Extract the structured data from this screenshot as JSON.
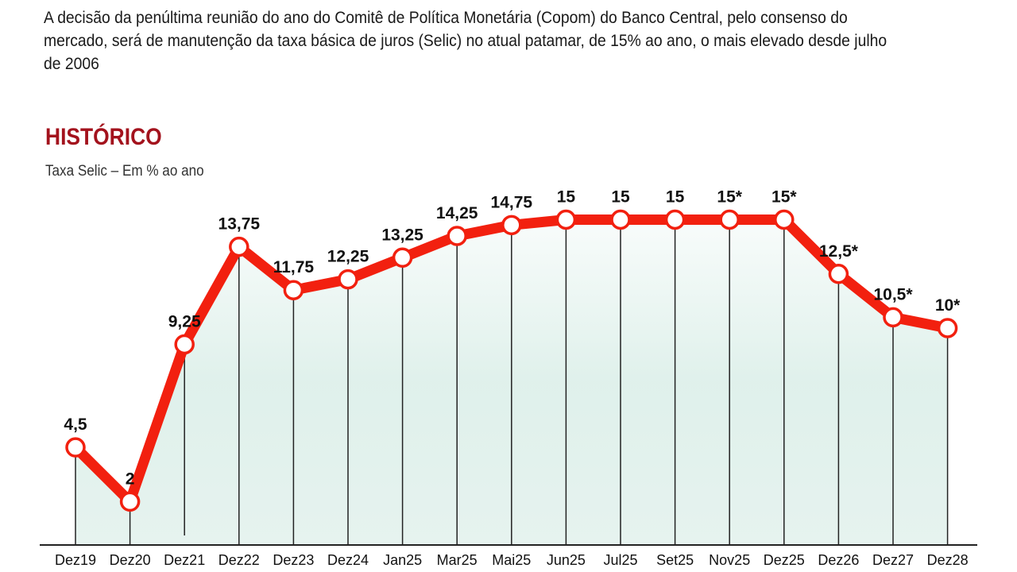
{
  "headline": "A decisão da penúltima reunião do ano do Comitê de Política Monetária (Copom) do Banco Central, pelo consenso do mercado, será de manutenção da taxa básica de juros (Selic) no atual patamar, de 15% ao ano, o mais elevado desde julho de 2006",
  "chart_data": {
    "type": "line",
    "title": "HISTÓRICO",
    "subtitle": "Taxa Selic – Em % ao ano",
    "xlabel": "",
    "ylabel": "",
    "ylim": [
      0,
      15
    ],
    "grid": "vertical drop lines",
    "categories": [
      "Dez19",
      "Dez20",
      "Dez21",
      "Dez22",
      "Dez23",
      "Dez24",
      "Jan25",
      "Mar25",
      "Mai25",
      "Jun25",
      "Jul25",
      "Set25",
      "Nov25",
      "Dez25",
      "Dez26",
      "Dez27",
      "Dez28"
    ],
    "values": [
      4.5,
      2,
      9.25,
      13.75,
      11.75,
      12.25,
      13.25,
      14.25,
      14.75,
      15,
      15,
      15,
      15,
      15,
      12.5,
      10.5,
      10
    ],
    "labels": [
      "4,5",
      "2",
      "9,25",
      "13,75",
      "11,75",
      "12,25",
      "13,25",
      "14,25",
      "14,75",
      "15",
      "15",
      "15",
      "15*",
      "15*",
      "12,5*",
      "10,5*",
      "10*"
    ],
    "colors": {
      "line": "#f2200f",
      "title": "#a3121d",
      "fill": "#dcefe9"
    }
  }
}
